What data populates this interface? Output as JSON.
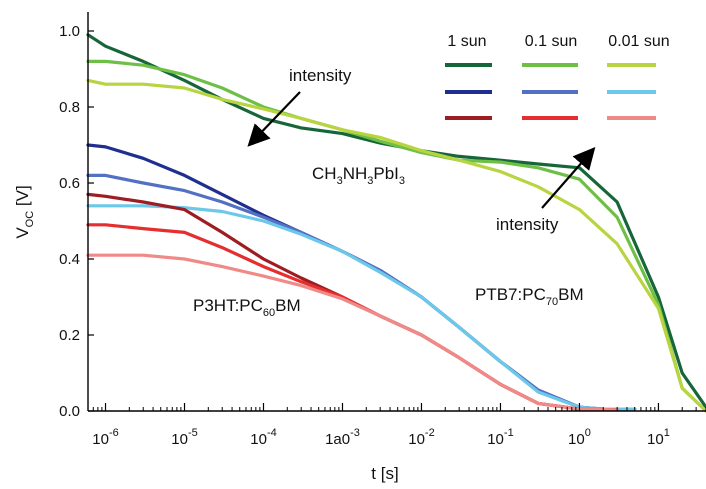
{
  "chart_data": {
    "type": "line",
    "xlabel": "t [s]",
    "ylabel_main": "V",
    "ylabel_sub": "OC",
    "ylabel_unit": " [V]",
    "x_scale": "log",
    "xlim": [
      6e-07,
      40
    ],
    "ylim": [
      0.0,
      1.05
    ],
    "grid": false,
    "legend_position": "top-right",
    "x_ticks": [
      {
        "label": "10",
        "exp": "-6",
        "value": 1e-06
      },
      {
        "label": "10",
        "exp": "-5",
        "value": 1e-05
      },
      {
        "label": "10",
        "exp": "-4",
        "value": 0.0001
      },
      {
        "label": "1a0",
        "exp": "-3",
        "value": 0.001
      },
      {
        "label": "10",
        "exp": "-2",
        "value": 0.01
      },
      {
        "label": "10",
        "exp": "-1",
        "value": 0.1
      },
      {
        "label": "10",
        "exp": "0",
        "value": 1
      },
      {
        "label": "10",
        "exp": "1",
        "value": 10
      }
    ],
    "y_ticks": [
      {
        "label": "0.0",
        "value": 0.0
      },
      {
        "label": "0.2",
        "value": 0.2
      },
      {
        "label": "0.4",
        "value": 0.4
      },
      {
        "label": "0.6",
        "value": 0.6
      },
      {
        "label": "0.8",
        "value": 0.8
      },
      {
        "label": "1.0",
        "value": 1.0
      }
    ],
    "legend_columns": [
      "1 sun",
      "0.1 sun",
      "0.01 sun"
    ],
    "materials": [
      {
        "text": "CH",
        "sub1": "3",
        "text2": "NH",
        "sub2": "3",
        "text3": "PbI",
        "sub3": "3"
      },
      {
        "text": "PTB7:PC",
        "sub1": "70",
        "text2": "BM"
      },
      {
        "text": "P3HT:PC",
        "sub1": "60",
        "text2": "BM"
      }
    ],
    "annotations": [
      "intensity",
      "intensity"
    ],
    "series": [
      {
        "color": "#17663a",
        "x": [
          6e-07,
          1e-06,
          3e-06,
          1e-05,
          3e-05,
          0.0001,
          0.0003,
          0.001,
          0.003,
          0.01,
          0.03,
          0.1,
          0.3,
          1,
          3,
          10,
          20,
          40
        ],
        "y": [
          0.99,
          0.96,
          0.92,
          0.87,
          0.82,
          0.77,
          0.745,
          0.73,
          0.705,
          0.685,
          0.67,
          0.66,
          0.65,
          0.64,
          0.55,
          0.3,
          0.1,
          0.01
        ]
      },
      {
        "color": "#6dbf45",
        "x": [
          6e-07,
          1e-06,
          3e-06,
          1e-05,
          3e-05,
          0.0001,
          0.0003,
          0.001,
          0.003,
          0.01,
          0.03,
          0.1,
          0.3,
          1,
          3,
          10,
          20,
          40
        ],
        "y": [
          0.92,
          0.92,
          0.91,
          0.885,
          0.85,
          0.8,
          0.77,
          0.74,
          0.71,
          0.68,
          0.66,
          0.655,
          0.64,
          0.61,
          0.51,
          0.28,
          0.06,
          0.0
        ]
      },
      {
        "color": "#b8d441",
        "x": [
          6e-07,
          1e-06,
          3e-06,
          1e-05,
          3e-05,
          0.0001,
          0.0003,
          0.001,
          0.003,
          0.01,
          0.03,
          0.1,
          0.3,
          1,
          3,
          10,
          20,
          40
        ],
        "y": [
          0.87,
          0.86,
          0.86,
          0.85,
          0.82,
          0.795,
          0.77,
          0.74,
          0.72,
          0.685,
          0.66,
          0.63,
          0.59,
          0.53,
          0.44,
          0.27,
          0.06,
          0.0
        ]
      },
      {
        "color": "#1f2f8f",
        "x": [
          6e-07,
          1e-06,
          3e-06,
          1e-05,
          3e-05,
          0.0001,
          0.0003,
          0.001,
          0.003,
          0.01,
          0.03,
          0.1,
          0.3,
          1,
          2,
          5
        ],
        "y": [
          0.7,
          0.695,
          0.665,
          0.62,
          0.57,
          0.515,
          0.47,
          0.42,
          0.37,
          0.3,
          0.22,
          0.13,
          0.055,
          0.01,
          0.005,
          0.005
        ]
      },
      {
        "color": "#5270c4",
        "x": [
          6e-07,
          1e-06,
          3e-06,
          1e-05,
          3e-05,
          0.0001,
          0.0003,
          0.001,
          0.003,
          0.01,
          0.03,
          0.1,
          0.3,
          1,
          2,
          5
        ],
        "y": [
          0.62,
          0.62,
          0.6,
          0.58,
          0.55,
          0.51,
          0.47,
          0.42,
          0.37,
          0.3,
          0.22,
          0.13,
          0.055,
          0.01,
          0.005,
          0.005
        ]
      },
      {
        "color": "#6cc8ea",
        "x": [
          6e-07,
          1e-06,
          3e-06,
          1e-05,
          3e-05,
          0.0001,
          0.0003,
          0.001,
          0.003,
          0.01,
          0.03,
          0.1,
          0.3,
          1,
          2,
          5
        ],
        "y": [
          0.54,
          0.54,
          0.54,
          0.535,
          0.525,
          0.5,
          0.465,
          0.42,
          0.365,
          0.3,
          0.22,
          0.13,
          0.05,
          0.01,
          0.005,
          0.005
        ]
      },
      {
        "color": "#9e1d22",
        "x": [
          6e-07,
          1e-06,
          3e-06,
          1e-05,
          3e-05,
          0.0001,
          0.0003,
          0.001,
          0.003,
          0.01,
          0.03,
          0.1,
          0.3,
          1,
          3
        ],
        "y": [
          0.57,
          0.565,
          0.55,
          0.53,
          0.47,
          0.4,
          0.35,
          0.3,
          0.25,
          0.2,
          0.14,
          0.07,
          0.02,
          0.005,
          0.003
        ]
      },
      {
        "color": "#e52e2e",
        "x": [
          6e-07,
          1e-06,
          3e-06,
          1e-05,
          3e-05,
          0.0001,
          0.0003,
          0.001,
          0.003,
          0.01,
          0.03,
          0.1,
          0.3,
          1,
          3
        ],
        "y": [
          0.49,
          0.49,
          0.48,
          0.47,
          0.43,
          0.38,
          0.34,
          0.3,
          0.25,
          0.2,
          0.14,
          0.07,
          0.02,
          0.005,
          0.003
        ]
      },
      {
        "color": "#f08a88",
        "x": [
          6e-07,
          1e-06,
          3e-06,
          1e-05,
          3e-05,
          0.0001,
          0.0003,
          0.001,
          0.003,
          0.01,
          0.03,
          0.1,
          0.3,
          1,
          3
        ],
        "y": [
          0.41,
          0.41,
          0.41,
          0.4,
          0.38,
          0.355,
          0.33,
          0.295,
          0.25,
          0.2,
          0.14,
          0.07,
          0.02,
          0.005,
          0.003
        ]
      }
    ]
  }
}
